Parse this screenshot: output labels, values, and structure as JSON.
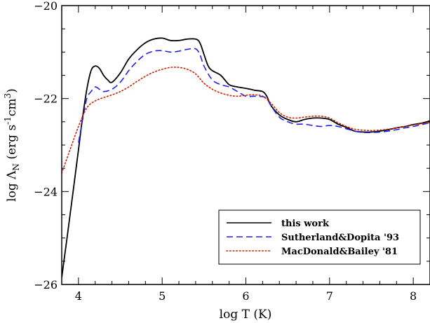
{
  "chart_data": {
    "type": "line",
    "xlabel": "log T (K)",
    "ylabel": {
      "prefix": "log Λ",
      "subscript": "N",
      "units_open": " (erg s",
      "exp1": "-1",
      "mid": "cm",
      "exp2": "3",
      "units_close": ")"
    },
    "xlim": [
      3.8,
      8.2
    ],
    "ylim": [
      -26,
      -20
    ],
    "xticks": [
      4,
      5,
      6,
      7,
      8
    ],
    "yticks": [
      -26,
      -24,
      -22,
      -20
    ],
    "xtick_labels": [
      "4",
      "5",
      "6",
      "7",
      "8"
    ],
    "ytick_labels": [
      "−26",
      "−24",
      "−22",
      "−20"
    ],
    "legend_position": "bottom-right",
    "series": [
      {
        "name": "this work",
        "color": "#000000",
        "dash": "solid",
        "x": [
          3.8,
          3.9,
          4.0,
          4.05,
          4.1,
          4.15,
          4.2,
          4.25,
          4.3,
          4.35,
          4.4,
          4.5,
          4.6,
          4.7,
          4.8,
          4.9,
          5.0,
          5.1,
          5.2,
          5.3,
          5.4,
          5.45,
          5.5,
          5.55,
          5.6,
          5.7,
          5.8,
          5.9,
          6.0,
          6.1,
          6.2,
          6.25,
          6.3,
          6.4,
          6.5,
          6.6,
          6.7,
          6.8,
          6.9,
          7.0,
          7.1,
          7.2,
          7.3,
          7.4,
          7.5,
          7.6,
          7.7,
          7.8,
          7.9,
          8.0,
          8.1,
          8.2
        ],
        "y": [
          -25.85,
          -24.5,
          -23.1,
          -22.4,
          -21.8,
          -21.4,
          -21.3,
          -21.35,
          -21.5,
          -21.6,
          -21.65,
          -21.45,
          -21.15,
          -20.95,
          -20.8,
          -20.72,
          -20.7,
          -20.75,
          -20.75,
          -20.72,
          -20.72,
          -20.8,
          -21.05,
          -21.3,
          -21.4,
          -21.5,
          -21.7,
          -21.75,
          -21.78,
          -21.82,
          -21.85,
          -21.95,
          -22.15,
          -22.35,
          -22.45,
          -22.5,
          -22.45,
          -22.42,
          -22.42,
          -22.45,
          -22.55,
          -22.62,
          -22.7,
          -22.72,
          -22.72,
          -22.7,
          -22.67,
          -22.63,
          -22.6,
          -22.56,
          -22.53,
          -22.48
        ]
      },
      {
        "name": "Sutherland&Dopita '93",
        "color": "#2020e6",
        "dash": "dashed",
        "x": [
          4.0,
          4.05,
          4.1,
          4.15,
          4.2,
          4.25,
          4.3,
          4.4,
          4.5,
          4.6,
          4.7,
          4.8,
          4.9,
          5.0,
          5.1,
          5.2,
          5.3,
          5.4,
          5.45,
          5.5,
          5.6,
          5.7,
          5.8,
          5.9,
          6.0,
          6.1,
          6.2,
          6.25,
          6.3,
          6.4,
          6.5,
          6.6,
          6.7,
          6.8,
          6.9,
          7.0,
          7.1,
          7.2,
          7.3,
          7.4,
          7.5,
          7.6,
          7.7,
          7.8,
          7.9,
          8.0,
          8.1,
          8.2
        ],
        "y": [
          -22.95,
          -22.45,
          -22.0,
          -21.85,
          -21.75,
          -21.8,
          -21.85,
          -21.8,
          -21.65,
          -21.4,
          -21.2,
          -21.05,
          -20.98,
          -20.97,
          -21.0,
          -20.98,
          -20.94,
          -20.93,
          -21.05,
          -21.3,
          -21.6,
          -21.7,
          -21.75,
          -21.85,
          -21.95,
          -21.95,
          -21.96,
          -22.0,
          -22.15,
          -22.4,
          -22.5,
          -22.55,
          -22.55,
          -22.58,
          -22.6,
          -22.58,
          -22.6,
          -22.65,
          -22.7,
          -22.73,
          -22.73,
          -22.72,
          -22.7,
          -22.67,
          -22.63,
          -22.6,
          -22.56,
          -22.52
        ]
      },
      {
        "name": "MacDonald&Bailey '81",
        "color": "#cc2200",
        "dash": "dotted",
        "x": [
          3.8,
          3.9,
          4.0,
          4.1,
          4.2,
          4.3,
          4.4,
          4.5,
          4.6,
          4.7,
          4.8,
          4.9,
          5.0,
          5.1,
          5.2,
          5.3,
          5.4,
          5.5,
          5.6,
          5.7,
          5.8,
          5.9,
          6.0,
          6.1,
          6.2,
          6.3,
          6.4,
          6.5,
          6.6,
          6.7,
          6.8,
          6.9,
          7.0,
          7.1,
          7.2,
          7.3,
          7.4,
          7.5,
          7.6,
          7.7,
          7.8,
          7.9,
          8.0,
          8.1,
          8.2
        ],
        "y": [
          -23.6,
          -23.1,
          -22.6,
          -22.2,
          -22.05,
          -21.98,
          -21.92,
          -21.85,
          -21.75,
          -21.63,
          -21.52,
          -21.43,
          -21.37,
          -21.33,
          -21.33,
          -21.37,
          -21.47,
          -21.67,
          -21.8,
          -21.88,
          -21.93,
          -21.95,
          -21.93,
          -21.92,
          -21.95,
          -22.1,
          -22.3,
          -22.4,
          -22.42,
          -22.4,
          -22.38,
          -22.38,
          -22.42,
          -22.52,
          -22.6,
          -22.66,
          -22.68,
          -22.69,
          -22.68,
          -22.66,
          -22.63,
          -22.6,
          -22.57,
          -22.54,
          -22.51
        ]
      }
    ]
  }
}
